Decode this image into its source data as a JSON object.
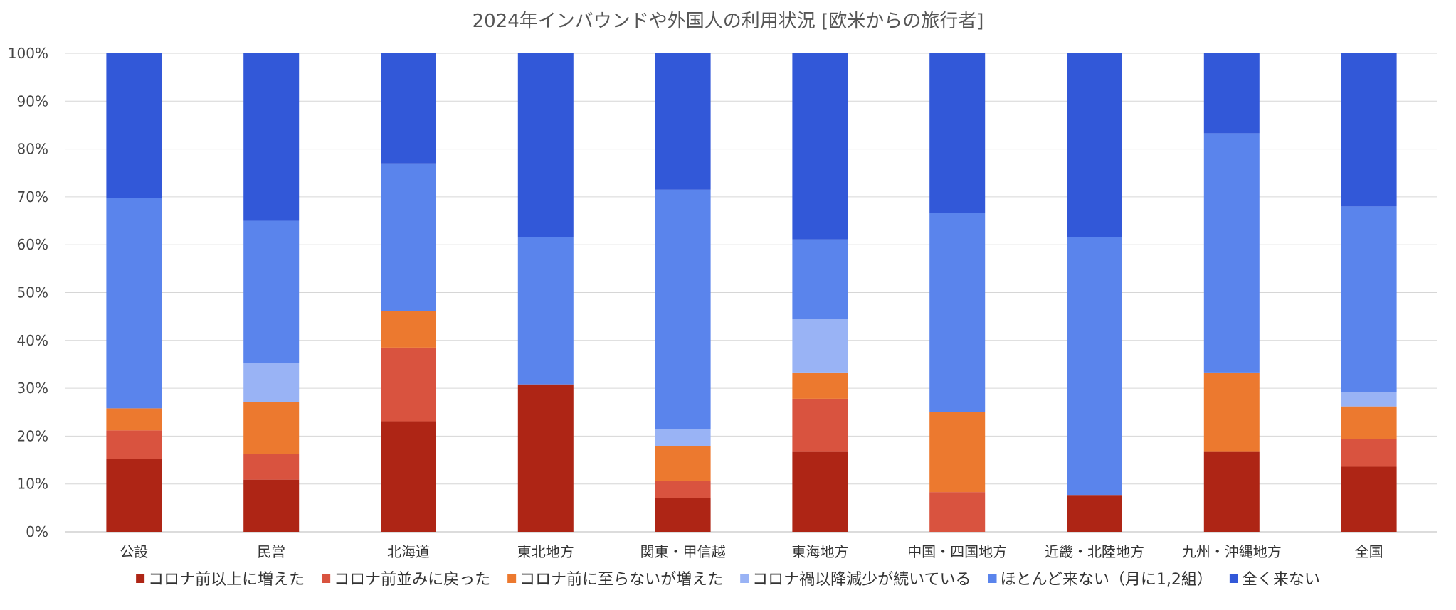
{
  "chart_data": {
    "type": "bar",
    "stacked": true,
    "percent": true,
    "title": "2024年インバウンドや外国人の利用状況 [欧米からの旅行者]",
    "xlabel": "",
    "ylabel": "",
    "ylim": [
      0,
      100
    ],
    "yticks": [
      "0%",
      "10%",
      "20%",
      "30%",
      "40%",
      "50%",
      "60%",
      "70%",
      "80%",
      "90%",
      "100%"
    ],
    "grid": true,
    "legend_position": "bottom",
    "categories": [
      "公設",
      "民営",
      "北海道",
      "東北地方",
      "関東・甲信越",
      "東海地方",
      "中国・四国地方",
      "近畿・北陸地方",
      "九州・沖縄地方",
      "全国"
    ],
    "series": [
      {
        "name": "コロナ前以上に増えた",
        "color": "#ae2515",
        "values": [
          15.2,
          10.9,
          23.1,
          30.8,
          7.1,
          16.7,
          0,
          7.7,
          16.7,
          13.6
        ]
      },
      {
        "name": "コロナ前並みに戻った",
        "color": "#d9533f",
        "values": [
          6.0,
          5.4,
          15.4,
          0,
          3.6,
          11.1,
          8.3,
          0,
          0,
          5.8
        ]
      },
      {
        "name": "コロナ前に至らないが増えた",
        "color": "#ec792f",
        "values": [
          4.6,
          10.8,
          7.7,
          0,
          7.2,
          5.5,
          16.7,
          0,
          16.6,
          6.8
        ]
      },
      {
        "name": "コロナ禍以降減少が続いている",
        "color": "#99b3f5",
        "values": [
          0,
          8.2,
          0,
          0,
          3.6,
          11.1,
          0,
          0,
          0,
          2.9
        ]
      },
      {
        "name": "ほとんど来ない（月に1,2組）",
        "color": "#5a84ec",
        "values": [
          43.9,
          29.7,
          30.8,
          30.8,
          50.0,
          16.7,
          41.7,
          53.9,
          50.0,
          38.9
        ]
      },
      {
        "name": "全く来ない",
        "color": "#3258d8",
        "values": [
          30.3,
          35.0,
          23.0,
          38.4,
          28.5,
          38.9,
          33.3,
          38.4,
          16.7,
          32.0
        ]
      }
    ]
  }
}
